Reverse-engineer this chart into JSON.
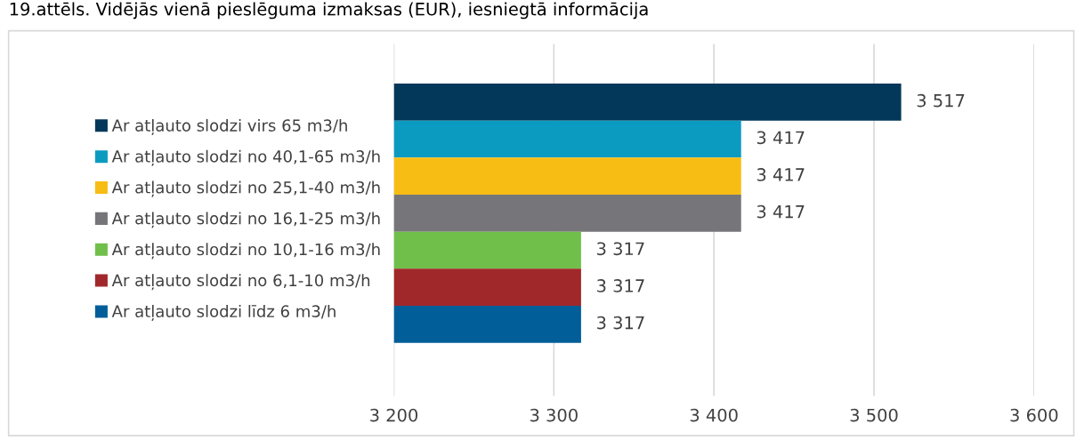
{
  "chart_data": {
    "type": "bar",
    "orientation": "horizontal",
    "title": "19.attēls. Vidējās vienā pieslēguma izmaksas (EUR), iesniegtā informācija",
    "categories": [
      null
    ],
    "series": [
      {
        "name": "Ar atļauto slodzi virs 65 m3/h",
        "color": "#04385a",
        "values": [
          3517
        ],
        "value_labels": [
          "3 517"
        ]
      },
      {
        "name": "Ar atļauto slodzi no 40,1-65 m3/h",
        "color": "#0b9bc1",
        "values": [
          3417
        ],
        "value_labels": [
          "3 417"
        ]
      },
      {
        "name": "Ar atļauto slodzi no 25,1-40 m3/h",
        "color": "#f8bd14",
        "values": [
          3417
        ],
        "value_labels": [
          "3 417"
        ]
      },
      {
        "name": "Ar atļauto slodzi no 16,1-25 m3/h",
        "color": "#76767a",
        "values": [
          3417
        ],
        "value_labels": [
          "3 417"
        ]
      },
      {
        "name": "Ar atļauto slodzi no 10,1-16 m3/h",
        "color": "#70bf4a",
        "values": [
          3317
        ],
        "value_labels": [
          "3 317"
        ]
      },
      {
        "name": "Ar atļauto slodzi no 6,1-10 m3/h",
        "color": "#a1282a",
        "values": [
          3317
        ],
        "value_labels": [
          "3 317"
        ]
      },
      {
        "name": "Ar atļauto slodzi līdz 6 m3/h",
        "color": "#015e98",
        "values": [
          3317
        ],
        "value_labels": [
          "3 317"
        ]
      }
    ],
    "xlim": [
      3200,
      3600
    ],
    "xticks": [
      {
        "value": 3200,
        "label": "3 200"
      },
      {
        "value": 3300,
        "label": "3 300"
      },
      {
        "value": 3400,
        "label": "3 400"
      },
      {
        "value": 3500,
        "label": "3 500"
      },
      {
        "value": 3600,
        "label": "3 600"
      }
    ],
    "grid": "x",
    "legend": "left"
  }
}
